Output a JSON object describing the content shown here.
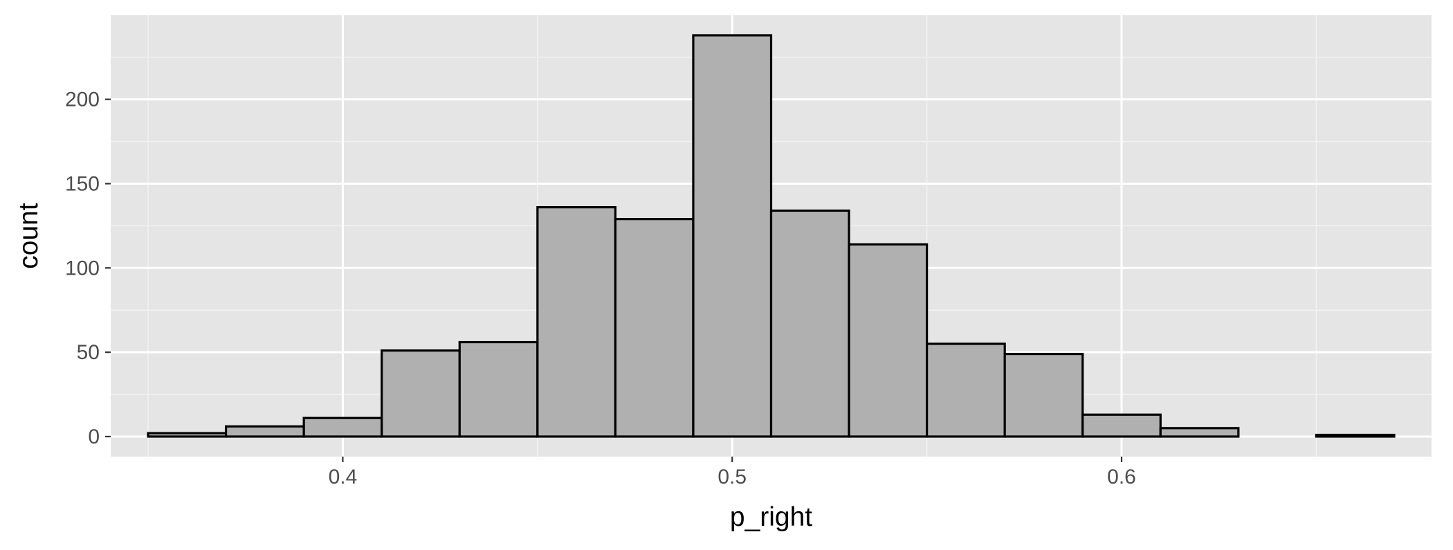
{
  "chart_data": {
    "type": "bar",
    "title": "",
    "xlabel": "p_right",
    "ylabel": "count",
    "bin_width": 0.02,
    "bins": [
      {
        "x": 0.36,
        "count": 2
      },
      {
        "x": 0.38,
        "count": 6
      },
      {
        "x": 0.4,
        "count": 11
      },
      {
        "x": 0.42,
        "count": 51
      },
      {
        "x": 0.44,
        "count": 56
      },
      {
        "x": 0.46,
        "count": 136
      },
      {
        "x": 0.48,
        "count": 129
      },
      {
        "x": 0.5,
        "count": 238
      },
      {
        "x": 0.52,
        "count": 134
      },
      {
        "x": 0.54,
        "count": 114
      },
      {
        "x": 0.56,
        "count": 55
      },
      {
        "x": 0.58,
        "count": 49
      },
      {
        "x": 0.6,
        "count": 13
      },
      {
        "x": 0.62,
        "count": 5
      },
      {
        "x": 0.64,
        "count": 0
      },
      {
        "x": 0.66,
        "count": 1
      }
    ],
    "xlim": [
      0.3404,
      0.6796
    ],
    "ylim": [
      -11.9,
      249.9
    ],
    "x_ticks": [
      0.4,
      0.5,
      0.6
    ],
    "x_tick_labels": [
      "0.4",
      "0.5",
      "0.6"
    ],
    "x_minor_ticks": [
      0.35,
      0.45,
      0.55,
      0.65
    ],
    "y_ticks": [
      0,
      50,
      100,
      150,
      200
    ],
    "y_tick_labels": [
      "0",
      "50",
      "100",
      "150",
      "200"
    ],
    "y_minor_ticks": [
      25,
      75,
      125,
      175,
      225
    ],
    "grid": true,
    "legend": "none",
    "colors": {
      "panel_background": "#e5e5e5",
      "grid_major": "#ffffff",
      "grid_minor": "#f2f2f2",
      "bar_fill": "#b0b0b0",
      "bar_outline": "#000000",
      "tick_text": "#4d4d4d",
      "axis_title": "#000000"
    }
  }
}
